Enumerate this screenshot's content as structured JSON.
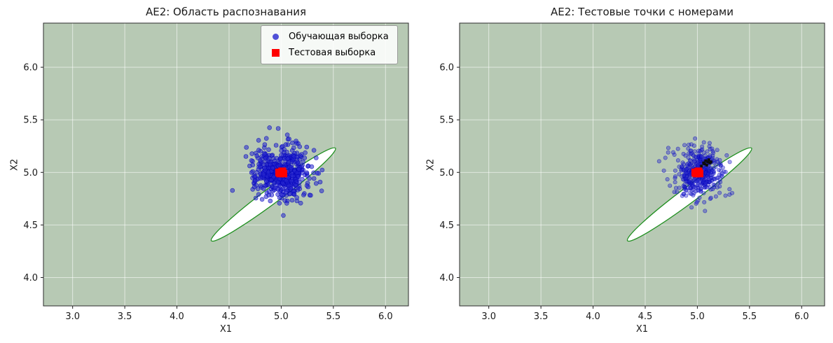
{
  "figure": {
    "background": "#ffffff"
  },
  "chart_data": [
    {
      "type": "scatter",
      "title": "AE2: Область распознавания",
      "xlabel": "X1",
      "ylabel": "X2",
      "xlim": [
        2.72,
        6.22
      ],
      "ylim": [
        3.73,
        6.42
      ],
      "xticks": [
        3.0,
        3.5,
        4.0,
        4.5,
        5.0,
        5.5,
        6.0
      ],
      "yticks": [
        4.0,
        4.5,
        5.0,
        5.5,
        6.0
      ],
      "background_color": "#b7c9b4",
      "grid": true,
      "grid_color": "rgba(255,255,255,0.65)",
      "region": {
        "shape": "ellipse",
        "center": [
          4.925,
          4.79
        ],
        "semi_major": 0.74,
        "semi_minor": 0.075,
        "angle_deg": 36.5,
        "face_color": "#ffffff",
        "edge_color": "#1f8f1f"
      },
      "train_cluster": {
        "name": "Обучающая выборка",
        "mean": [
          5.0,
          5.0
        ],
        "std": 0.13,
        "n": 500,
        "seed": 7,
        "color": "#2424d0",
        "edge_color": "#0000b8",
        "alpha": 0.55,
        "radius": 3
      },
      "test": {
        "name": "Тестовая выборка",
        "color": "#ff0000",
        "size": 11,
        "points": [
          [
            4.98,
            5.0
          ],
          [
            5.0,
            5.0
          ],
          [
            5.02,
            4.99
          ],
          [
            5.01,
            5.01
          ],
          [
            4.99,
            4.99
          ]
        ]
      },
      "legend": {
        "visible": true,
        "position": "upper right",
        "entries": [
          {
            "label": "Обучающая выборка",
            "marker": "blue-circle"
          },
          {
            "label": "Тестовая выборка",
            "marker": "red-square"
          }
        ]
      }
    },
    {
      "type": "scatter",
      "title": "AE2: Тестовые точки с номерами",
      "xlabel": "X1",
      "ylabel": "X2",
      "xlim": [
        2.72,
        6.22
      ],
      "ylim": [
        3.73,
        6.42
      ],
      "xticks": [
        3.0,
        3.5,
        4.0,
        4.5,
        5.0,
        5.5,
        6.0
      ],
      "yticks": [
        4.0,
        4.5,
        5.0,
        5.5,
        6.0
      ],
      "background_color": "#b7c9b4",
      "grid": true,
      "grid_color": "rgba(255,255,255,0.65)",
      "region": {
        "shape": "ellipse",
        "center": [
          4.925,
          4.79
        ],
        "semi_major": 0.74,
        "semi_minor": 0.075,
        "angle_deg": 36.5,
        "face_color": "#ffffff",
        "edge_color": "#1f8f1f"
      },
      "train_cluster": {
        "name": "Обучающая выборка",
        "mean": [
          5.0,
          5.0
        ],
        "std": 0.12,
        "n": 400,
        "seed": 13,
        "color": "#2424d0",
        "edge_color": "#0000b8",
        "alpha": 0.4,
        "radius": 2.7
      },
      "numbered_test_points": {
        "color": "#0d0d0d",
        "size": 4,
        "points": [
          [
            5.04,
            5.06
          ],
          [
            5.07,
            5.08
          ],
          [
            5.1,
            5.1
          ],
          [
            5.12,
            5.09
          ],
          [
            5.08,
            5.11
          ],
          [
            5.11,
            5.12
          ],
          [
            5.06,
            5.09
          ],
          [
            5.13,
            5.1
          ],
          [
            5.09,
            5.07
          ]
        ]
      },
      "test": {
        "name": "Тестовая выборка",
        "color": "#ff0000",
        "size": 11,
        "points": [
          [
            4.98,
            5.0
          ],
          [
            5.0,
            5.0
          ],
          [
            5.02,
            4.99
          ],
          [
            5.01,
            5.01
          ],
          [
            4.99,
            4.99
          ]
        ]
      },
      "legend": {
        "visible": false,
        "entries": []
      }
    }
  ]
}
